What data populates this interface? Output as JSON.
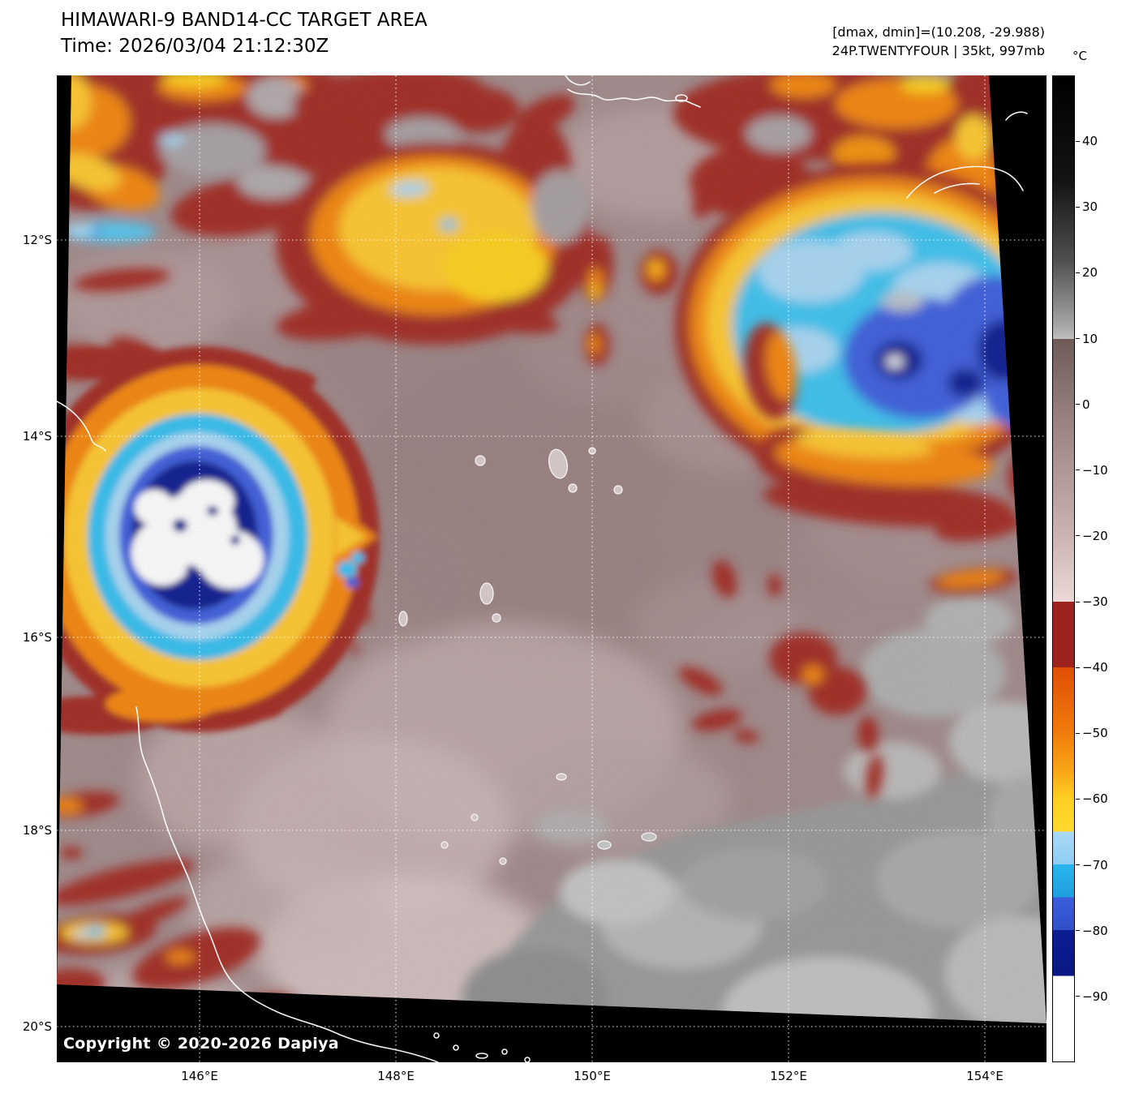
{
  "header": {
    "title": "HIMAWARI-9 BAND14-CC TARGET AREA",
    "time": "Time: 2026/03/04 21:12:30Z",
    "dmax_dmin": "[dmax, dmin]=(10.208, -29.988)",
    "storm": "24P.TWENTYFOUR | 35kt, 997mb"
  },
  "colorbar": {
    "unit": "°C",
    "range_c": [
      50,
      -100
    ],
    "ticks": [
      {
        "label": "40",
        "temp": 40
      },
      {
        "label": "30",
        "temp": 30
      },
      {
        "label": "20",
        "temp": 20
      },
      {
        "label": "10",
        "temp": 10
      },
      {
        "label": "0",
        "temp": 0
      },
      {
        "label": "−10",
        "temp": -10
      },
      {
        "label": "−20",
        "temp": -20
      },
      {
        "label": "−30",
        "temp": -30
      },
      {
        "label": "−40",
        "temp": -40
      },
      {
        "label": "−50",
        "temp": -50
      },
      {
        "label": "−60",
        "temp": -60
      },
      {
        "label": "−70",
        "temp": -70
      },
      {
        "label": "−80",
        "temp": -80
      },
      {
        "label": "−90",
        "temp": -90
      }
    ],
    "stops": [
      {
        "temp": 50,
        "color": "#000000"
      },
      {
        "temp": 34,
        "color": "#141414"
      },
      {
        "temp": 22,
        "color": "#4f4f4f"
      },
      {
        "temp": 12,
        "color": "#a6a6a6"
      },
      {
        "temp": 10,
        "color": "#c0c0c0"
      },
      {
        "temp": 10,
        "color": "#6e5a57"
      },
      {
        "temp": 0,
        "color": "#907b78"
      },
      {
        "temp": -10,
        "color": "#ae9896"
      },
      {
        "temp": -20,
        "color": "#cab4b2"
      },
      {
        "temp": -30,
        "color": "#ecd9d7"
      },
      {
        "temp": -30,
        "color": "#9e231d"
      },
      {
        "temp": -40,
        "color": "#9e231d"
      },
      {
        "temp": -40,
        "color": "#e04e05"
      },
      {
        "temp": -50,
        "color": "#f07c0c"
      },
      {
        "temp": -56,
        "color": "#f9a816"
      },
      {
        "temp": -60,
        "color": "#ffcf22"
      },
      {
        "temp": -65,
        "color": "#ffda2e"
      },
      {
        "temp": -65,
        "color": "#a9d9f6"
      },
      {
        "temp": -70,
        "color": "#8fcdf3"
      },
      {
        "temp": -70,
        "color": "#29b5ec"
      },
      {
        "temp": -75,
        "color": "#1f9fe0"
      },
      {
        "temp": -75,
        "color": "#3c5ede"
      },
      {
        "temp": -80,
        "color": "#3050c8"
      },
      {
        "temp": -80,
        "color": "#0c1d92"
      },
      {
        "temp": -87,
        "color": "#0a1884"
      },
      {
        "temp": -87,
        "color": "#ffffff"
      },
      {
        "temp": -100,
        "color": "#ffffff"
      }
    ]
  },
  "map": {
    "lat_labels": [
      "12°S",
      "14°S",
      "16°S",
      "18°S",
      "20°S"
    ],
    "lon_labels": [
      "146°E",
      "148°E",
      "150°E",
      "152°E",
      "154°E"
    ],
    "copyright": "Copyright © 2020-2026 Dapiya"
  }
}
